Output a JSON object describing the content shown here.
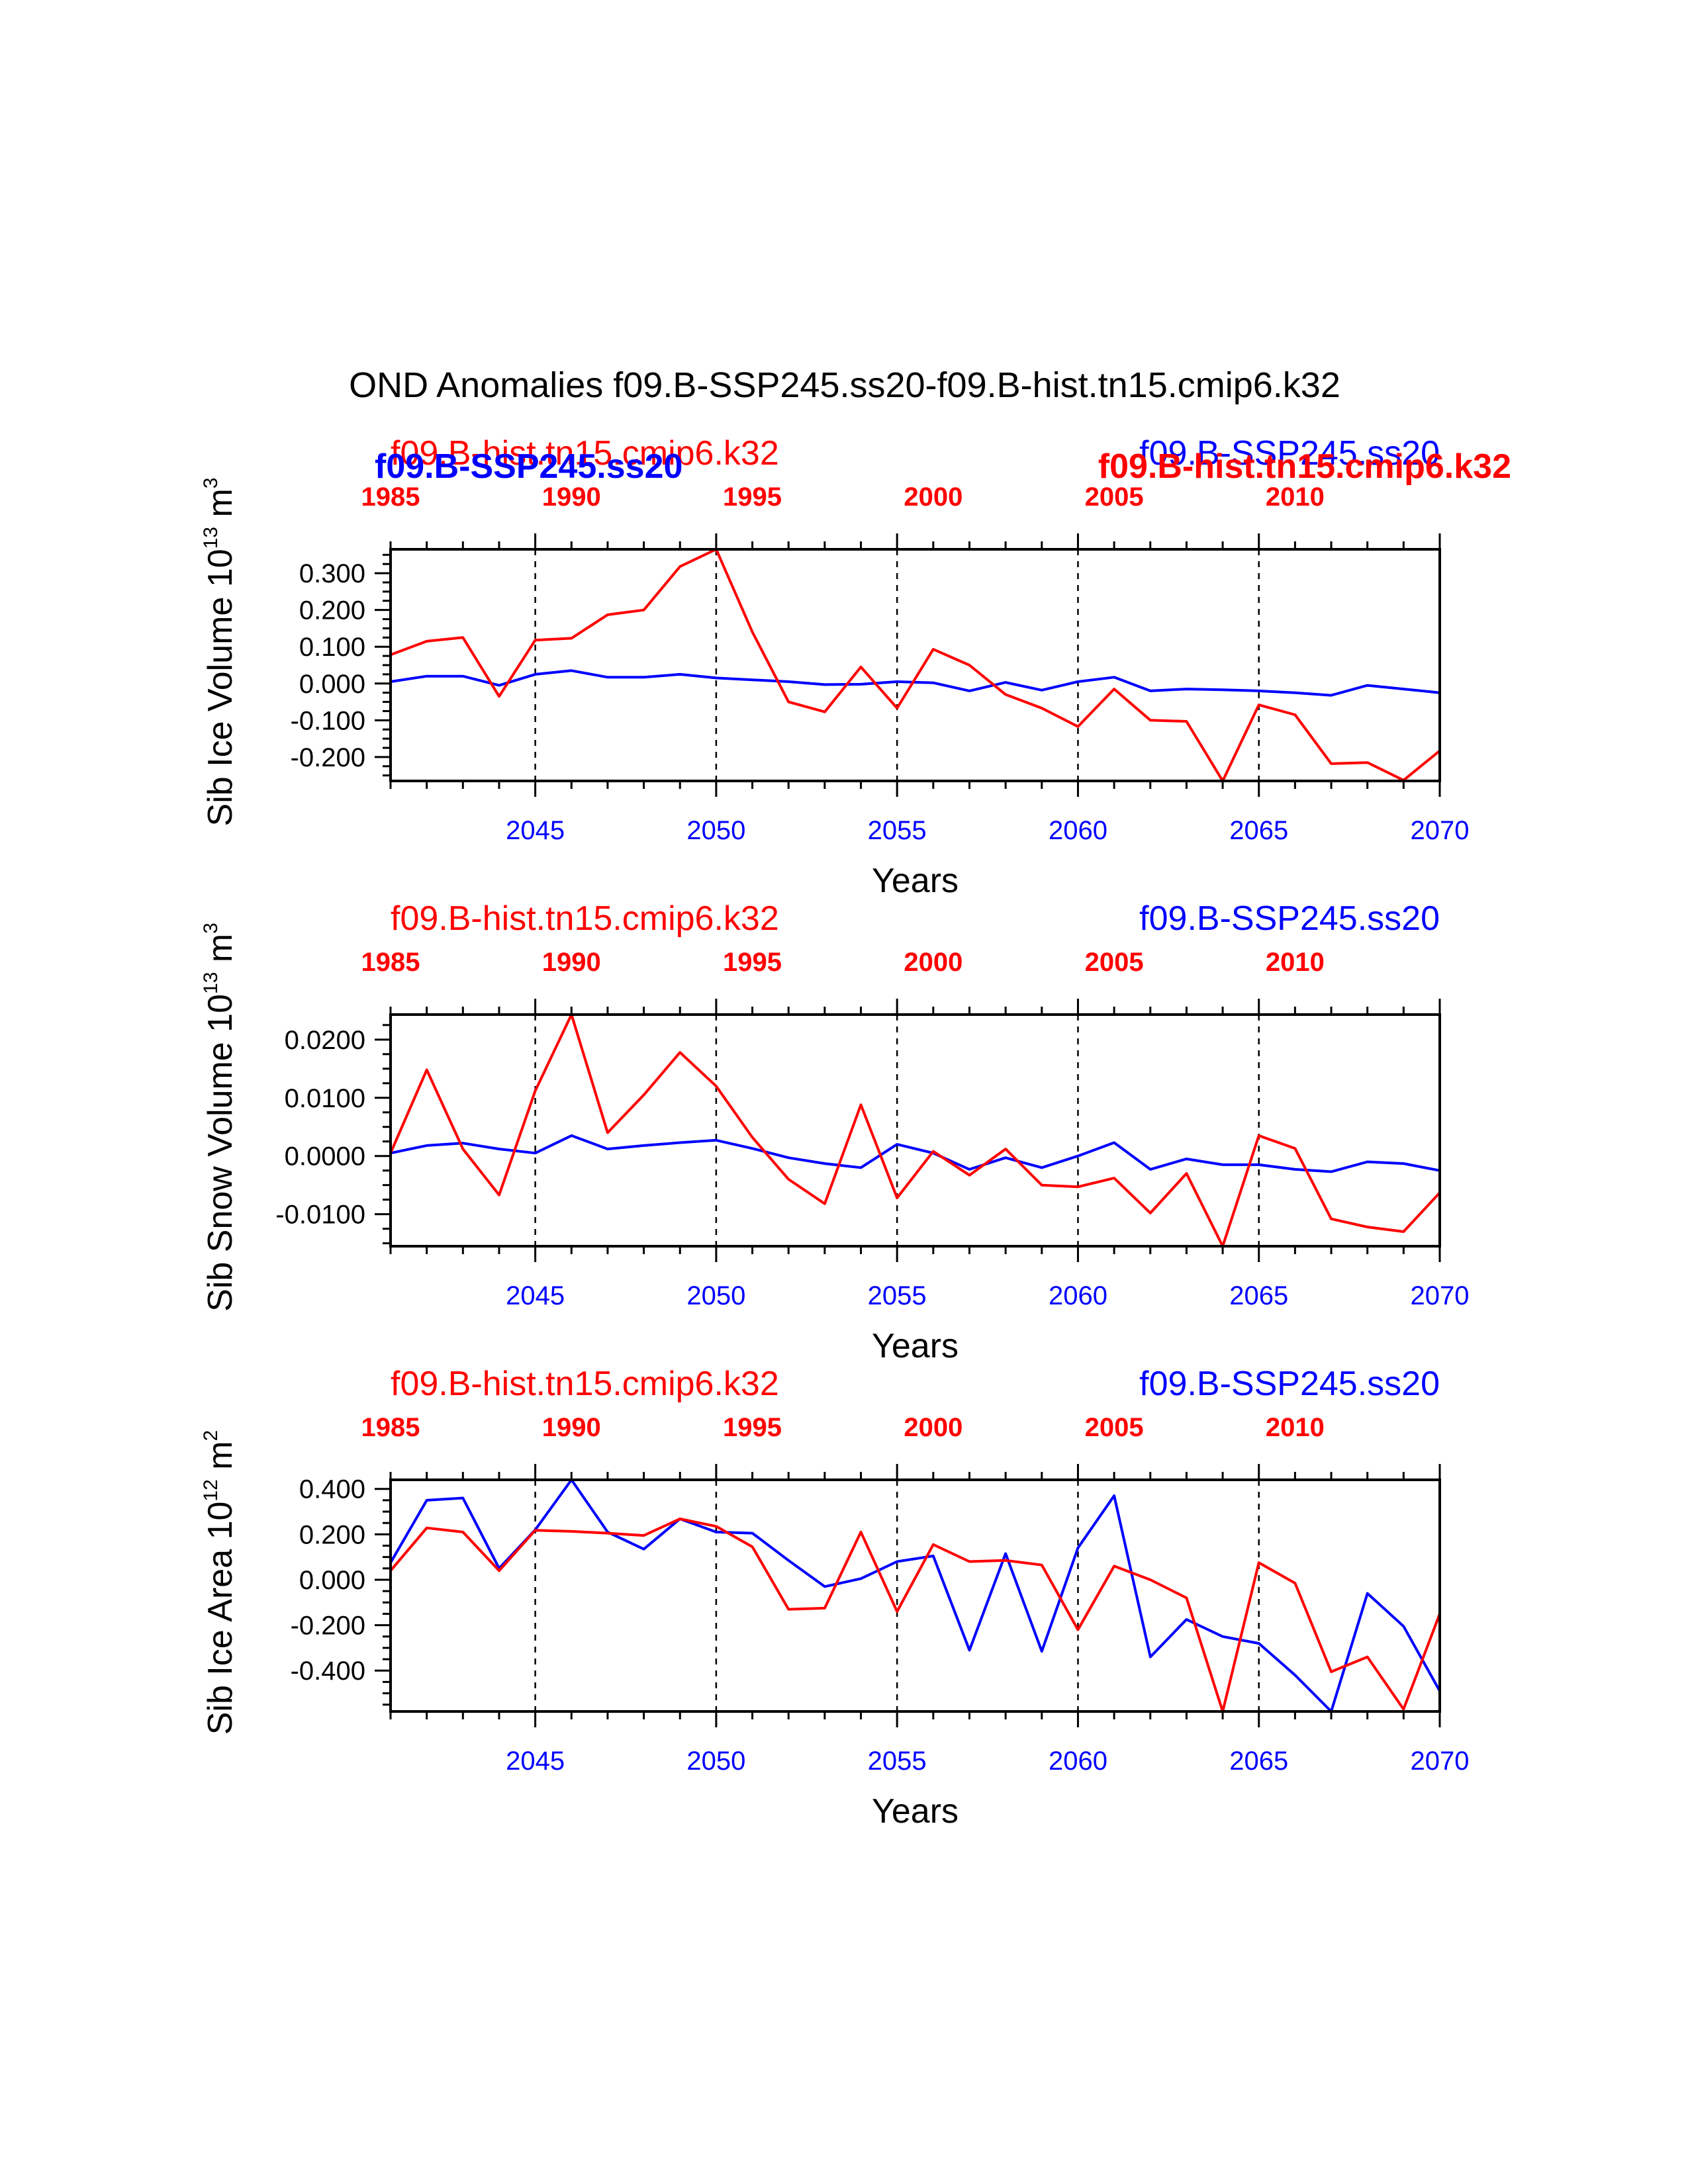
{
  "title": "OND Anomalies f09.B-SSP245.ss20-f09.B-hist.tn15.cmip6.k32",
  "colors": {
    "hist": "#ff0000",
    "ssp": "#0000ff"
  },
  "chart_data": [
    {
      "type": "line",
      "ylabel": "Sib Ice Volume 10",
      "ylabel_exp": "13",
      "ylabel_unit": "m",
      "ylabel_unit_exp": "3",
      "xlabel": "Years",
      "top_left_label": "f09.B-hist.tn15.cmip6.k32",
      "top_right_label": "f09.B-SSP245.ss20",
      "overlap_left_label": "f09.B-SSP245.ss20",
      "overlap_right_label": "f09.B-hist.tn15.cmip6.k32",
      "ylim": [
        -0.265,
        0.365
      ],
      "yticks": [
        -0.2,
        -0.1,
        0.0,
        0.1,
        0.2,
        0.3
      ],
      "ytick_labels": [
        "-0.200",
        "-0.100",
        "0.000",
        "0.100",
        "0.200",
        "0.300"
      ],
      "yminor": 0.025,
      "x_bottom_ticks": [
        "2045",
        "2050",
        "2055",
        "2060",
        "2065",
        "2070"
      ],
      "x_top_ticks": [
        "1985",
        "1990",
        "1995",
        "2000",
        "2005",
        "2010"
      ],
      "series": [
        {
          "name": "f09.B-hist.tn15.cmip6.k32",
          "color": "#ff0000",
          "x": [
            2041,
            2042,
            2043,
            2044,
            2045,
            2046,
            2047,
            2048,
            2049,
            2050,
            2051,
            2052,
            2053,
            2054,
            2055,
            2056,
            2057,
            2058,
            2059,
            2060,
            2061,
            2062,
            2063,
            2064,
            2065,
            2066,
            2067,
            2068,
            2069,
            2070
          ],
          "values": [
            0.078,
            0.115,
            0.125,
            -0.035,
            0.118,
            0.123,
            0.187,
            0.2,
            0.318,
            0.365,
            0.14,
            -0.05,
            -0.077,
            0.045,
            -0.067,
            0.093,
            0.05,
            -0.03,
            -0.067,
            -0.117,
            -0.015,
            -0.1,
            -0.103,
            -0.265,
            -0.058,
            -0.085,
            -0.218,
            -0.215,
            -0.263,
            -0.183
          ]
        },
        {
          "name": "f09.B-SSP245.ss20",
          "color": "#0000ff",
          "x": [
            2041,
            2042,
            2043,
            2044,
            2045,
            2046,
            2047,
            2048,
            2049,
            2050,
            2051,
            2052,
            2053,
            2054,
            2055,
            2056,
            2057,
            2058,
            2059,
            2060,
            2061,
            2062,
            2063,
            2064,
            2065,
            2066,
            2067,
            2068,
            2069,
            2070
          ],
          "values": [
            0.005,
            0.02,
            0.02,
            -0.005,
            0.025,
            0.035,
            0.017,
            0.017,
            0.025,
            0.015,
            0.01,
            0.005,
            -0.003,
            -0.002,
            0.005,
            0.002,
            -0.02,
            0.003,
            -0.018,
            0.005,
            0.017,
            -0.02,
            -0.015,
            -0.017,
            -0.02,
            -0.025,
            -0.032,
            -0.005,
            -0.015,
            -0.025
          ]
        }
      ]
    },
    {
      "type": "line",
      "ylabel": "Sib Snow Volume 10",
      "ylabel_exp": "13",
      "ylabel_unit": "m",
      "ylabel_unit_exp": "3",
      "xlabel": "Years",
      "top_left_label": "f09.B-hist.tn15.cmip6.k32",
      "top_right_label": "f09.B-SSP245.ss20",
      "ylim": [
        -0.0155,
        0.0243
      ],
      "yticks": [
        -0.01,
        0.0,
        0.01,
        0.02
      ],
      "ytick_labels": [
        "-0.0100",
        "0.0000",
        "0.0100",
        "0.0200"
      ],
      "yminor": 0.0025,
      "x_bottom_ticks": [
        "2045",
        "2050",
        "2055",
        "2060",
        "2065",
        "2070"
      ],
      "x_top_ticks": [
        "1985",
        "1990",
        "1995",
        "2000",
        "2005",
        "2010"
      ],
      "series": [
        {
          "name": "f09.B-hist.tn15.cmip6.k32",
          "color": "#ff0000",
          "x": [
            2041,
            2042,
            2043,
            2044,
            2045,
            2046,
            2047,
            2048,
            2049,
            2050,
            2051,
            2052,
            2053,
            2054,
            2055,
            2056,
            2057,
            2058,
            2059,
            2060,
            2061,
            2062,
            2063,
            2064,
            2065,
            2066,
            2067,
            2068,
            2069,
            2070
          ],
          "values": [
            0.0005,
            0.0148,
            0.0012,
            -0.0067,
            0.0112,
            0.0243,
            0.004,
            0.0105,
            0.0178,
            0.012,
            0.0032,
            -0.004,
            -0.0082,
            0.0088,
            -0.0072,
            0.0008,
            -0.0033,
            0.0012,
            -0.005,
            -0.0053,
            -0.0038,
            -0.0098,
            -0.003,
            -0.0155,
            0.0035,
            0.0013,
            -0.0108,
            -0.0122,
            -0.013,
            -0.0063
          ]
        },
        {
          "name": "f09.B-SSP245.ss20",
          "color": "#0000ff",
          "x": [
            2041,
            2042,
            2043,
            2044,
            2045,
            2046,
            2047,
            2048,
            2049,
            2050,
            2051,
            2052,
            2053,
            2054,
            2055,
            2056,
            2057,
            2058,
            2059,
            2060,
            2061,
            2062,
            2063,
            2064,
            2065,
            2066,
            2067,
            2068,
            2069,
            2070
          ],
          "values": [
            0.0005,
            0.0018,
            0.0022,
            0.0012,
            0.0005,
            0.0035,
            0.0012,
            0.0018,
            0.0023,
            0.0027,
            0.0013,
            -0.0003,
            -0.0013,
            -0.002,
            0.002,
            0.0005,
            -0.0023,
            -0.0003,
            -0.002,
            0.0,
            0.0023,
            -0.0023,
            -0.0005,
            -0.0015,
            -0.0015,
            -0.0023,
            -0.0027,
            -0.001,
            -0.0013,
            -0.0025
          ]
        }
      ]
    },
    {
      "type": "line",
      "ylabel": "Sib Ice Area 10",
      "ylabel_exp": "12",
      "ylabel_unit": "m",
      "ylabel_unit_exp": "2",
      "xlabel": "Years",
      "top_left_label": "f09.B-hist.tn15.cmip6.k32",
      "top_right_label": "f09.B-SSP245.ss20",
      "ylim": [
        -0.58,
        0.44
      ],
      "yticks": [
        -0.4,
        -0.2,
        0.0,
        0.2,
        0.4
      ],
      "ytick_labels": [
        "-0.400",
        "-0.200",
        "0.000",
        "0.200",
        "0.400"
      ],
      "yminor": 0.05,
      "x_bottom_ticks": [
        "2045",
        "2050",
        "2055",
        "2060",
        "2065",
        "2070"
      ],
      "x_top_ticks": [
        "1985",
        "1990",
        "1995",
        "2000",
        "2005",
        "2010"
      ],
      "series": [
        {
          "name": "f09.B-hist.tn15.cmip6.k32",
          "color": "#ff0000",
          "x": [
            2041,
            2042,
            2043,
            2044,
            2045,
            2046,
            2047,
            2048,
            2049,
            2050,
            2051,
            2052,
            2053,
            2054,
            2055,
            2056,
            2057,
            2058,
            2059,
            2060,
            2061,
            2062,
            2063,
            2064,
            2065,
            2066,
            2067,
            2068,
            2069,
            2070
          ],
          "values": [
            0.04,
            0.228,
            0.21,
            0.04,
            0.218,
            0.213,
            0.205,
            0.195,
            0.268,
            0.235,
            0.145,
            -0.13,
            -0.125,
            0.21,
            -0.14,
            0.155,
            0.08,
            0.085,
            0.065,
            -0.22,
            0.06,
            0.0,
            -0.08,
            -0.58,
            0.075,
            -0.015,
            -0.405,
            -0.34,
            -0.57,
            -0.15
          ]
        },
        {
          "name": "f09.B-SSP245.ss20",
          "color": "#0000ff",
          "x": [
            2041,
            2042,
            2043,
            2044,
            2045,
            2046,
            2047,
            2048,
            2049,
            2050,
            2051,
            2052,
            2053,
            2054,
            2055,
            2056,
            2057,
            2058,
            2059,
            2060,
            2061,
            2062,
            2063,
            2064,
            2065,
            2066,
            2067,
            2068,
            2069,
            2070
          ],
          "values": [
            0.075,
            0.35,
            0.36,
            0.05,
            0.22,
            0.44,
            0.21,
            0.135,
            0.268,
            0.21,
            0.205,
            0.085,
            -0.03,
            0.005,
            0.08,
            0.105,
            -0.31,
            0.115,
            -0.315,
            0.14,
            0.37,
            -0.34,
            -0.175,
            -0.25,
            -0.28,
            -0.42,
            -0.58,
            -0.06,
            -0.205,
            -0.49
          ]
        }
      ]
    }
  ]
}
